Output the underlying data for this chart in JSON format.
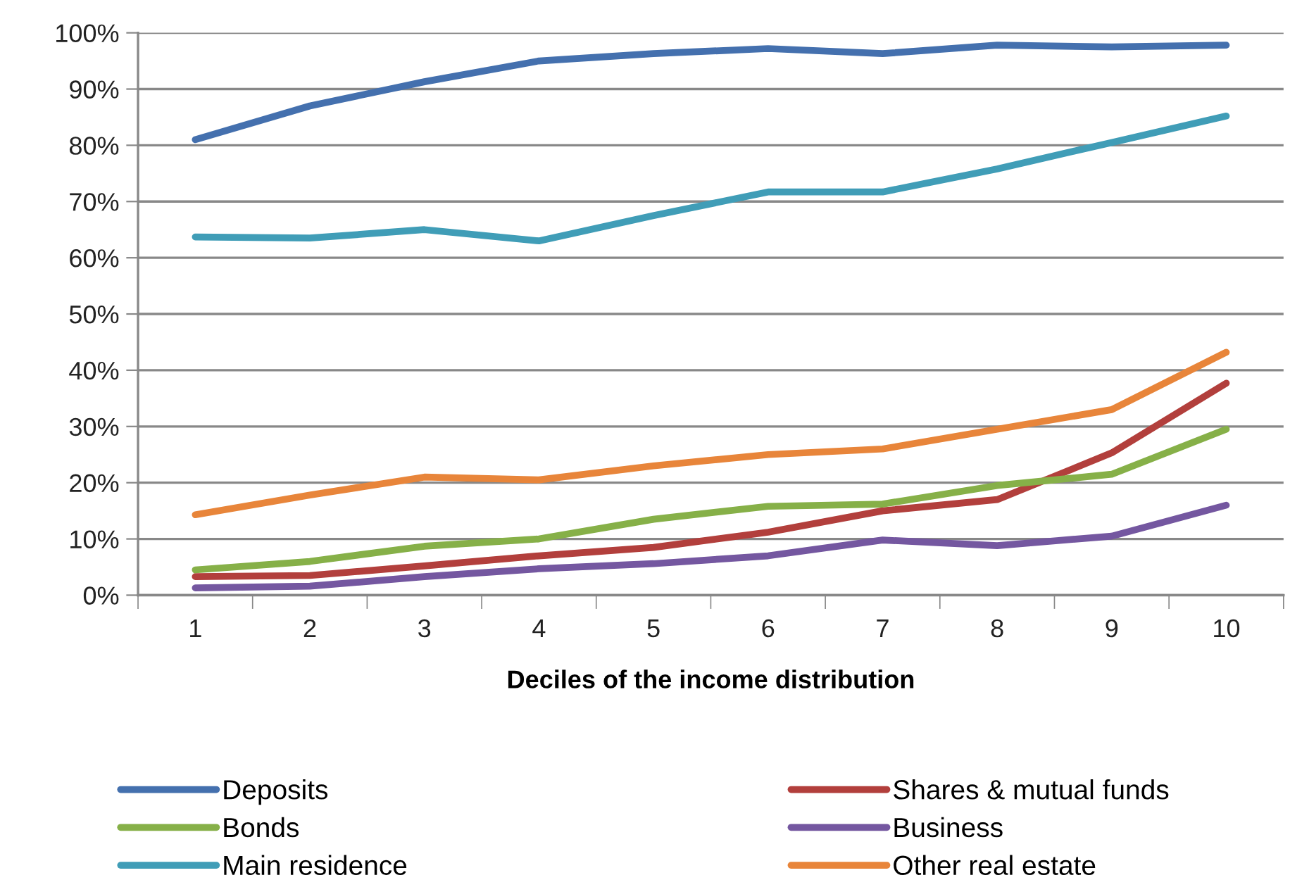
{
  "chart_data": {
    "type": "line",
    "xlabel": "Deciles of the income distribution",
    "categories": [
      "1",
      "2",
      "3",
      "4",
      "5",
      "6",
      "7",
      "8",
      "9",
      "10"
    ],
    "series": [
      {
        "name": "Deposits",
        "color": "#4470ae",
        "values": [
          81,
          87,
          91.3,
          95,
          96.3,
          97.2,
          96.3,
          97.8,
          97.5,
          97.8
        ]
      },
      {
        "name": "Shares & mutual funds",
        "color": "#b23f3c",
        "values": [
          3.3,
          3.5,
          5.2,
          7,
          8.5,
          11.2,
          15,
          17,
          25.3,
          37.7
        ]
      },
      {
        "name": "Bonds",
        "color": "#86b048",
        "values": [
          4.5,
          6,
          8.7,
          10,
          13.5,
          15.8,
          16.2,
          19.5,
          21.5,
          29.5
        ]
      },
      {
        "name": "Business",
        "color": "#7457a0",
        "values": [
          1.3,
          1.6,
          3.3,
          4.7,
          5.6,
          7,
          9.8,
          8.8,
          10.5,
          16
        ]
      },
      {
        "name": "Main residence",
        "color": "#409db7",
        "values": [
          63.7,
          63.5,
          65,
          63,
          67.5,
          71.7,
          71.7,
          75.8,
          80.5,
          85.2
        ]
      },
      {
        "name": "Other real estate",
        "color": "#e8853a",
        "values": [
          14.3,
          17.8,
          21,
          20.5,
          23,
          25,
          26,
          29.5,
          33,
          43.2
        ]
      }
    ],
    "ylim": [
      0,
      100
    ],
    "yticks": [
      {
        "value": 0,
        "label": "0%"
      },
      {
        "value": 10,
        "label": "10%"
      },
      {
        "value": 20,
        "label": "20%"
      },
      {
        "value": 30,
        "label": "30%"
      },
      {
        "value": 40,
        "label": "40%"
      },
      {
        "value": 50,
        "label": "50%"
      },
      {
        "value": 60,
        "label": "60%"
      },
      {
        "value": 70,
        "label": "70%"
      },
      {
        "value": 80,
        "label": "80%"
      },
      {
        "value": 90,
        "label": "90%"
      },
      {
        "value": 100,
        "label": "100%"
      }
    ],
    "grid": "y",
    "legend": "bottom",
    "marker": "none",
    "line_style": "solid"
  }
}
